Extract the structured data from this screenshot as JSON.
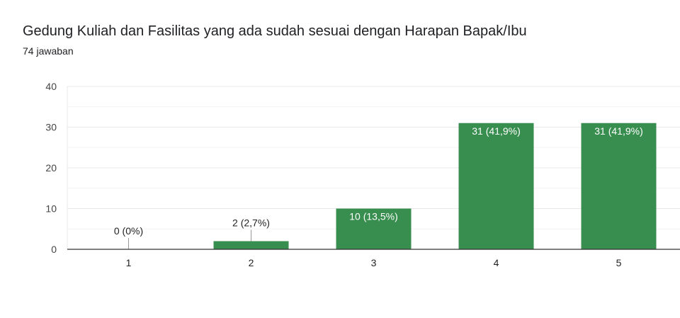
{
  "chart_data": {
    "type": "bar",
    "title": "Gedung Kuliah dan Fasilitas yang ada sudah sesuai dengan Harapan Bapak/Ibu",
    "subtitle": "74 jawaban",
    "categories": [
      "1",
      "2",
      "3",
      "4",
      "5"
    ],
    "values": [
      0,
      2,
      10,
      31,
      31
    ],
    "data_labels": [
      "0 (0%)",
      "2 (2,7%)",
      "10 (13,5%)",
      "31 (41,9%)",
      "31 (41,9%)"
    ],
    "yticks": [
      "0",
      "10",
      "20",
      "30",
      "40"
    ],
    "ylim": [
      0,
      40
    ],
    "grid": true,
    "xlabel": "",
    "ylabel": "",
    "bar_color": "#388e4f"
  }
}
